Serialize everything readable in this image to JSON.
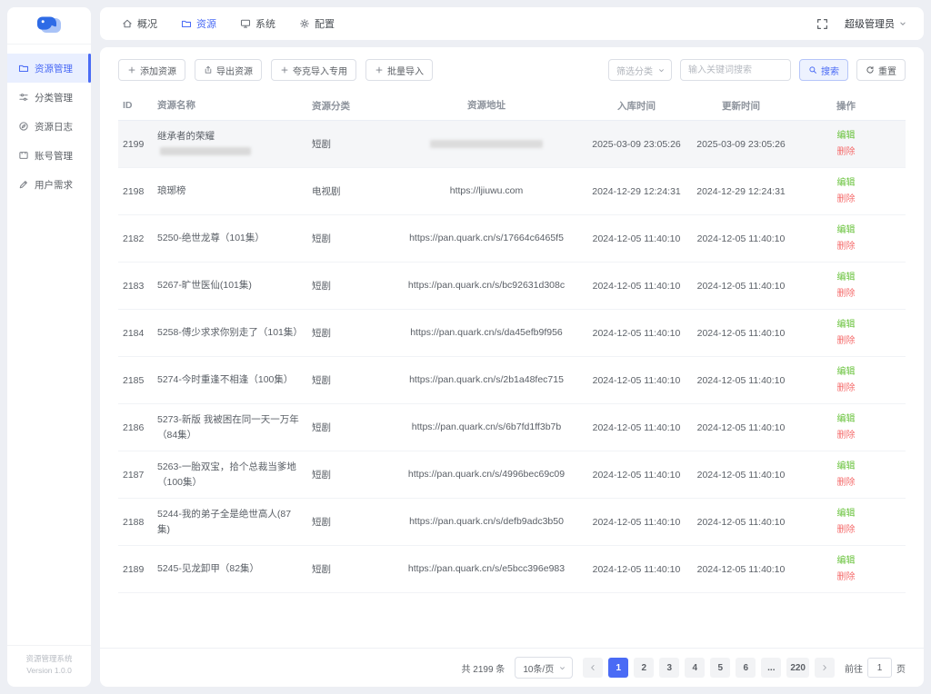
{
  "brand": {
    "footer_title": "资源管理系统",
    "footer_version": "Version 1.0.0"
  },
  "topnav": {
    "items": [
      {
        "key": "overview",
        "label": "概况",
        "icon": "home",
        "active": false
      },
      {
        "key": "resources",
        "label": "资源",
        "icon": "folder",
        "active": true
      },
      {
        "key": "system",
        "label": "系统",
        "icon": "monitor",
        "active": false
      },
      {
        "key": "config",
        "label": "配置",
        "icon": "gear",
        "active": false
      }
    ],
    "user": {
      "name": "超级管理员"
    }
  },
  "sidebar": {
    "items": [
      {
        "key": "resource-management",
        "label": "资源管理",
        "icon": "folder",
        "active": true
      },
      {
        "key": "category-management",
        "label": "分类管理",
        "icon": "sliders",
        "active": false
      },
      {
        "key": "resource-log",
        "label": "资源日志",
        "icon": "compass",
        "active": false
      },
      {
        "key": "account-management",
        "label": "账号管理",
        "icon": "card",
        "active": false
      },
      {
        "key": "user-demand",
        "label": "用户需求",
        "icon": "pen",
        "active": false
      }
    ]
  },
  "toolbar": {
    "buttons": [
      {
        "key": "add-resource",
        "label": "添加资源",
        "icon": "plus"
      },
      {
        "key": "export-resource",
        "label": "导出资源",
        "icon": "export"
      },
      {
        "key": "quark-import",
        "label": "夸克导入专用",
        "icon": "plus"
      },
      {
        "key": "batch-import",
        "label": "批量导入",
        "icon": "plus"
      }
    ]
  },
  "filters": {
    "category_placeholder": "筛选分类",
    "keyword_placeholder": "输入关键词搜索",
    "search_label": "搜索",
    "reset_label": "重置"
  },
  "table": {
    "columns": [
      "ID",
      "资源名称",
      "资源分类",
      "资源地址",
      "入库时间",
      "更新时间",
      "操作"
    ],
    "ops": {
      "edit": "编辑",
      "delete": "删除"
    },
    "rows": [
      {
        "id": "2199",
        "name": "继承者的荣耀",
        "name_redacted": true,
        "category": "短剧",
        "url": "",
        "url_redacted": true,
        "created": "2025-03-09 23:05:26",
        "updated": "2025-03-09 23:05:26",
        "highlight": true
      },
      {
        "id": "2198",
        "name": "琅琊榜",
        "category": "电视剧",
        "url": "https://ljiuwu.com",
        "created": "2024-12-29 12:24:31",
        "updated": "2024-12-29 12:24:31"
      },
      {
        "id": "2182",
        "name": "5250-绝世龙尊（101集）",
        "category": "短剧",
        "url": "https://pan.quark.cn/s/17664c6465f5",
        "created": "2024-12-05 11:40:10",
        "updated": "2024-12-05 11:40:10"
      },
      {
        "id": "2183",
        "name": "5267-旷世医仙(101集)",
        "category": "短剧",
        "url": "https://pan.quark.cn/s/bc92631d308c",
        "created": "2024-12-05 11:40:10",
        "updated": "2024-12-05 11:40:10"
      },
      {
        "id": "2184",
        "name": "5258-傅少求求你别走了（101集）",
        "category": "短剧",
        "url": "https://pan.quark.cn/s/da45efb9f956",
        "created": "2024-12-05 11:40:10",
        "updated": "2024-12-05 11:40:10"
      },
      {
        "id": "2185",
        "name": "5274-今时重逢不相逢（100集）",
        "category": "短剧",
        "url": "https://pan.quark.cn/s/2b1a48fec715",
        "created": "2024-12-05 11:40:10",
        "updated": "2024-12-05 11:40:10"
      },
      {
        "id": "2186",
        "name": "5273-新版 我被困在同一天一万年（84集）",
        "category": "短剧",
        "url": "https://pan.quark.cn/s/6b7fd1ff3b7b",
        "created": "2024-12-05 11:40:10",
        "updated": "2024-12-05 11:40:10"
      },
      {
        "id": "2187",
        "name": "5263-一胎双宝，拾个总裁当爹地（100集）",
        "category": "短剧",
        "url": "https://pan.quark.cn/s/4996bec69c09",
        "created": "2024-12-05 11:40:10",
        "updated": "2024-12-05 11:40:10"
      },
      {
        "id": "2188",
        "name": "5244-我的弟子全是绝世高人(87集)",
        "category": "短剧",
        "url": "https://pan.quark.cn/s/defb9adc3b50",
        "created": "2024-12-05 11:40:10",
        "updated": "2024-12-05 11:40:10"
      },
      {
        "id": "2189",
        "name": "5245-见龙卸甲（82集）",
        "category": "短剧",
        "url": "https://pan.quark.cn/s/e5bcc396e983",
        "created": "2024-12-05 11:40:10",
        "updated": "2024-12-05 11:40:10"
      }
    ]
  },
  "pagination": {
    "total": "共 2199 条",
    "page_size": "10条/页",
    "pages": [
      "1",
      "2",
      "3",
      "4",
      "5",
      "6",
      "...",
      "220"
    ],
    "active_page": "1",
    "goto_label": "前往",
    "goto_value": "1",
    "goto_suffix": "页"
  },
  "colors": {
    "primary": "#4a6bf5",
    "success": "#67c23a",
    "danger": "#f56c6c"
  }
}
